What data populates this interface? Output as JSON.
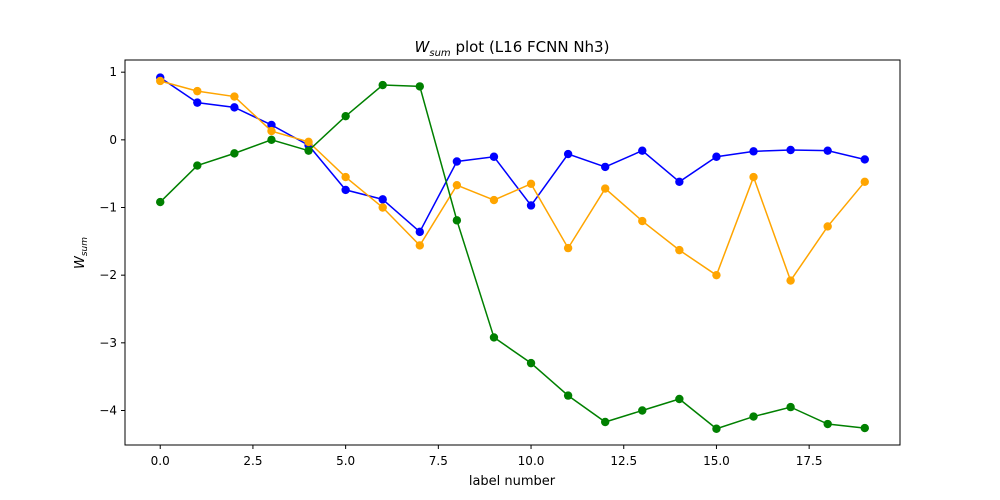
{
  "chart_data": {
    "type": "line",
    "title_main": "W",
    "title_sub": "sum",
    "title_rest": " plot (L16 FCNN Nh3)",
    "xlabel": "label number",
    "ylabel_main": "W",
    "ylabel_sub": "sum",
    "xlim": [
      -0.95,
      19.95
    ],
    "ylim": [
      -4.51,
      1.18
    ],
    "xticks": [
      0.0,
      2.5,
      5.0,
      7.5,
      10.0,
      12.5,
      15.0,
      17.5
    ],
    "xtick_labels": [
      "0.0",
      "2.5",
      "5.0",
      "7.5",
      "10.0",
      "12.5",
      "15.0",
      "17.5"
    ],
    "yticks": [
      1,
      0,
      -1,
      -2,
      -3,
      -4
    ],
    "ytick_labels": [
      "1",
      "0",
      "−1",
      "−2",
      "−3",
      "−4"
    ],
    "grid": false,
    "x": [
      0,
      1,
      2,
      3,
      4,
      5,
      6,
      7,
      8,
      9,
      10,
      11,
      12,
      13,
      14,
      15,
      16,
      17,
      18,
      19
    ],
    "series": [
      {
        "color": "#0000ff",
        "values": [
          0.92,
          0.55,
          0.48,
          0.22,
          -0.08,
          -0.74,
          -0.88,
          -1.36,
          -0.32,
          -0.25,
          -0.97,
          -0.21,
          -0.4,
          -0.16,
          -0.62,
          -0.25,
          -0.17,
          -0.15,
          -0.16,
          -0.29
        ]
      },
      {
        "color": "#ffa500",
        "values": [
          0.87,
          0.72,
          0.64,
          0.13,
          -0.03,
          -0.55,
          -1.0,
          -1.56,
          -0.67,
          -0.89,
          -0.65,
          -1.6,
          -0.72,
          -1.2,
          -1.63,
          -2.0,
          -0.55,
          -2.08,
          -1.28,
          -0.62
        ]
      },
      {
        "color": "#008000",
        "values": [
          -0.92,
          -0.38,
          -0.2,
          0.0,
          -0.16,
          0.35,
          0.81,
          0.79,
          -1.19,
          -2.92,
          -3.3,
          -3.78,
          -4.17,
          -4.0,
          -3.83,
          -4.27,
          -4.09,
          -3.95,
          -4.2,
          -4.26
        ]
      }
    ]
  }
}
